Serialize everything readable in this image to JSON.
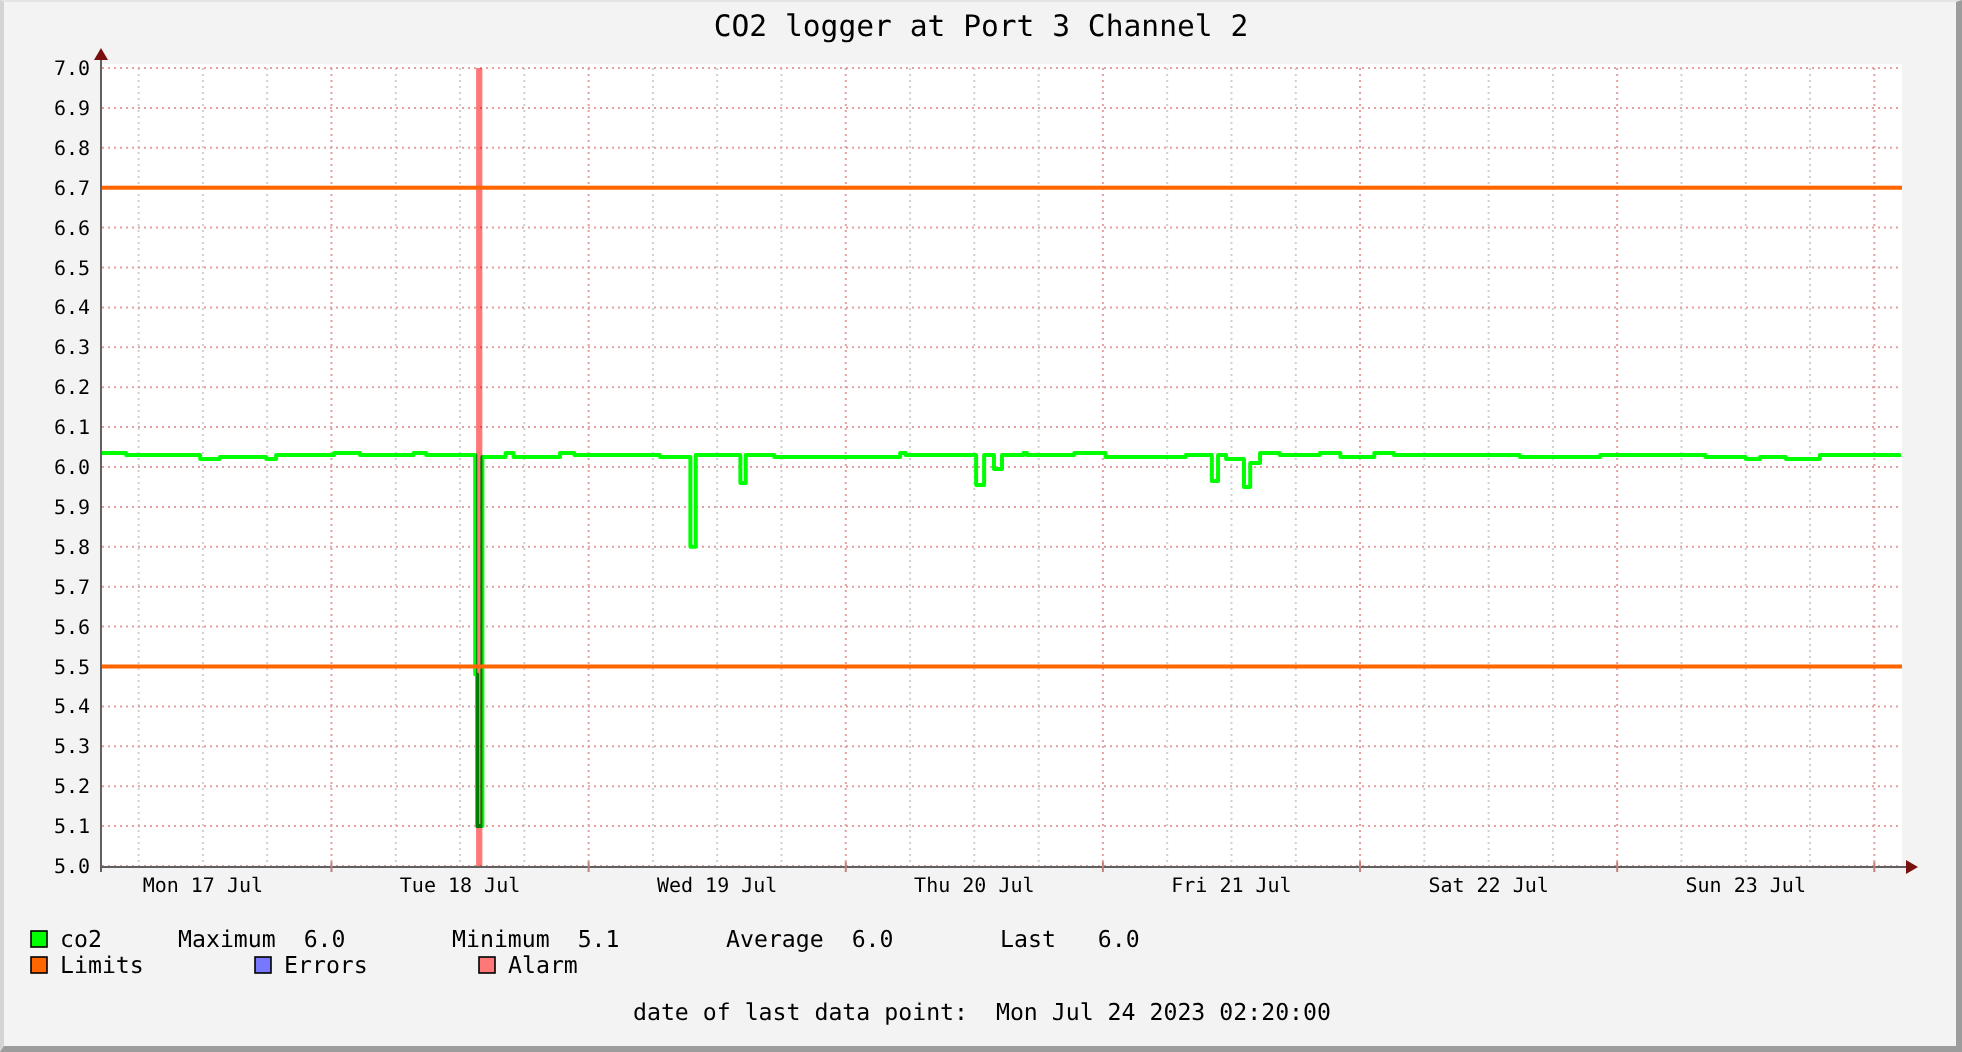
{
  "chart_data": {
    "type": "step",
    "title": "CO2 logger at Port 3 Channel 2",
    "xlim": [
      "2023-07-17T02:35",
      "2023-07-24T02:35"
    ],
    "xticks": [
      {
        "value": "2023-07-17T06:00",
        "label": null
      },
      {
        "value": "2023-07-17T12:00",
        "label": "Mon 17 Jul"
      },
      {
        "value": "2023-07-17T18:00",
        "label": null
      },
      {
        "value": "2023-07-18T00:00",
        "label": null
      },
      {
        "value": "2023-07-18T06:00",
        "label": null
      },
      {
        "value": "2023-07-18T12:00",
        "label": "Tue 18 Jul"
      },
      {
        "value": "2023-07-18T18:00",
        "label": null
      },
      {
        "value": "2023-07-19T00:00",
        "label": null
      },
      {
        "value": "2023-07-19T06:00",
        "label": null
      },
      {
        "value": "2023-07-19T12:00",
        "label": "Wed 19 Jul"
      },
      {
        "value": "2023-07-19T18:00",
        "label": null
      },
      {
        "value": "2023-07-20T00:00",
        "label": null
      },
      {
        "value": "2023-07-20T06:00",
        "label": null
      },
      {
        "value": "2023-07-20T12:00",
        "label": "Thu 20 Jul"
      },
      {
        "value": "2023-07-20T18:00",
        "label": null
      },
      {
        "value": "2023-07-21T00:00",
        "label": null
      },
      {
        "value": "2023-07-21T06:00",
        "label": null
      },
      {
        "value": "2023-07-21T12:00",
        "label": "Fri 21 Jul"
      },
      {
        "value": "2023-07-21T18:00",
        "label": null
      },
      {
        "value": "2023-07-22T00:00",
        "label": null
      },
      {
        "value": "2023-07-22T06:00",
        "label": null
      },
      {
        "value": "2023-07-22T12:00",
        "label": "Sat 22 Jul"
      },
      {
        "value": "2023-07-22T18:00",
        "label": null
      },
      {
        "value": "2023-07-23T00:00",
        "label": null
      },
      {
        "value": "2023-07-23T06:00",
        "label": null
      },
      {
        "value": "2023-07-23T12:00",
        "label": "Sun 23 Jul"
      },
      {
        "value": "2023-07-23T18:00",
        "label": null
      },
      {
        "value": "2023-07-24T00:00",
        "label": null
      }
    ],
    "ylim": [
      5,
      7
    ],
    "yticks": [
      {
        "value": 5,
        "label": "5.0"
      },
      5.1,
      5.2,
      5.3,
      5.4,
      5.5,
      5.6,
      5.7,
      5.8,
      5.9,
      {
        "value": 6,
        "label": "6.0"
      },
      6.1,
      6.2,
      6.3,
      6.4,
      6.5,
      6.6,
      6.7,
      6.8,
      6.9,
      {
        "value": 7,
        "label": "7.0"
      }
    ],
    "x": [
      "2023-07-17T02:35",
      "2023-07-17T04:50",
      "2023-07-17T11:45",
      "2023-07-17T13:35",
      "2023-07-17T17:55",
      "2023-07-17T18:50",
      "2023-07-18T00:15",
      "2023-07-18T02:40",
      "2023-07-18T07:40",
      "2023-07-18T08:50",
      "2023-07-18T13:25",
      "2023-07-18T13:35",
      "2023-07-18T14:05",
      "2023-07-18T16:15",
      "2023-07-18T17:00",
      "2023-07-18T21:20",
      "2023-07-18T22:40",
      "2023-07-19T06:40",
      "2023-07-19T09:30",
      "2023-07-19T10:00",
      "2023-07-19T14:10",
      "2023-07-19T14:40",
      "2023-07-19T17:20",
      "2023-07-20T05:05",
      "2023-07-20T05:35",
      "2023-07-20T12:10",
      "2023-07-20T12:55",
      "2023-07-20T13:50",
      "2023-07-20T14:35",
      "2023-07-20T16:35",
      "2023-07-20T16:55",
      "2023-07-20T21:20",
      "2023-07-21T00:15",
      "2023-07-21T07:45",
      "2023-07-21T10:10",
      "2023-07-21T10:45",
      "2023-07-21T11:30",
      "2023-07-21T13:10",
      "2023-07-21T13:45",
      "2023-07-21T14:40",
      "2023-07-21T16:30",
      "2023-07-21T20:15",
      "2023-07-21T22:10",
      "2023-07-22T01:20",
      "2023-07-22T03:10",
      "2023-07-22T14:55",
      "2023-07-22T22:25",
      "2023-07-23T08:15",
      "2023-07-23T12:00",
      "2023-07-23T13:20",
      "2023-07-23T15:45",
      "2023-07-23T18:55",
      "2023-07-24T02:20"
    ],
    "series": [
      {
        "name": "co2",
        "color": "#00ff00",
        "values": [
          6.035,
          6.03,
          6.02,
          6.025,
          6.02,
          6.03,
          6.035,
          6.03,
          6.035,
          6.03,
          5.48,
          5.1,
          6.025,
          6.035,
          6.025,
          6.035,
          6.03,
          6.025,
          5.8,
          6.03,
          5.96,
          6.03,
          6.025,
          6.035,
          6.03,
          5.955,
          6.03,
          5.995,
          6.03,
          6.035,
          6.03,
          6.035,
          6.025,
          6.03,
          5.965,
          6.03,
          6.02,
          5.95,
          6.01,
          6.035,
          6.03,
          6.035,
          6.025,
          6.035,
          6.03,
          6.025,
          6.03,
          6.025,
          6.02,
          6.025,
          6.02,
          6.03,
          6.025
        ]
      },
      {
        "name": "Errors",
        "color": "#7777ff",
        "values": [
          null,
          null,
          null,
          null,
          null,
          null,
          null,
          null,
          null,
          null,
          null,
          null,
          null,
          null,
          null,
          null,
          null,
          null,
          null,
          null,
          null,
          null,
          null,
          null,
          null,
          null,
          null,
          null,
          null,
          null,
          null,
          null,
          null,
          null,
          null,
          null,
          null,
          null,
          null,
          null,
          null,
          null,
          null,
          null,
          null,
          null,
          null,
          null,
          null,
          null,
          null,
          null,
          null
        ]
      }
    ],
    "ref_lines": [
      {
        "axis": "y",
        "value": 6.7,
        "label": "Limits",
        "color": "#ff6600"
      },
      {
        "axis": "y",
        "value": 5.5,
        "color": "#ff6600"
      }
    ],
    "bands": [
      {
        "axis": "x",
        "from": "2023-07-18T13:30",
        "to": "2023-07-18T14:05",
        "label": "Alarm",
        "color": "#ff7777"
      }
    ],
    "annotations": [
      "Maximum  6.0",
      "Minimum  5.1",
      "Average  6.0",
      "Last   6.0",
      "date of last data point:  Mon Jul 24 2023 02:20:00"
    ],
    "grid": true,
    "legend": "bottom"
  }
}
